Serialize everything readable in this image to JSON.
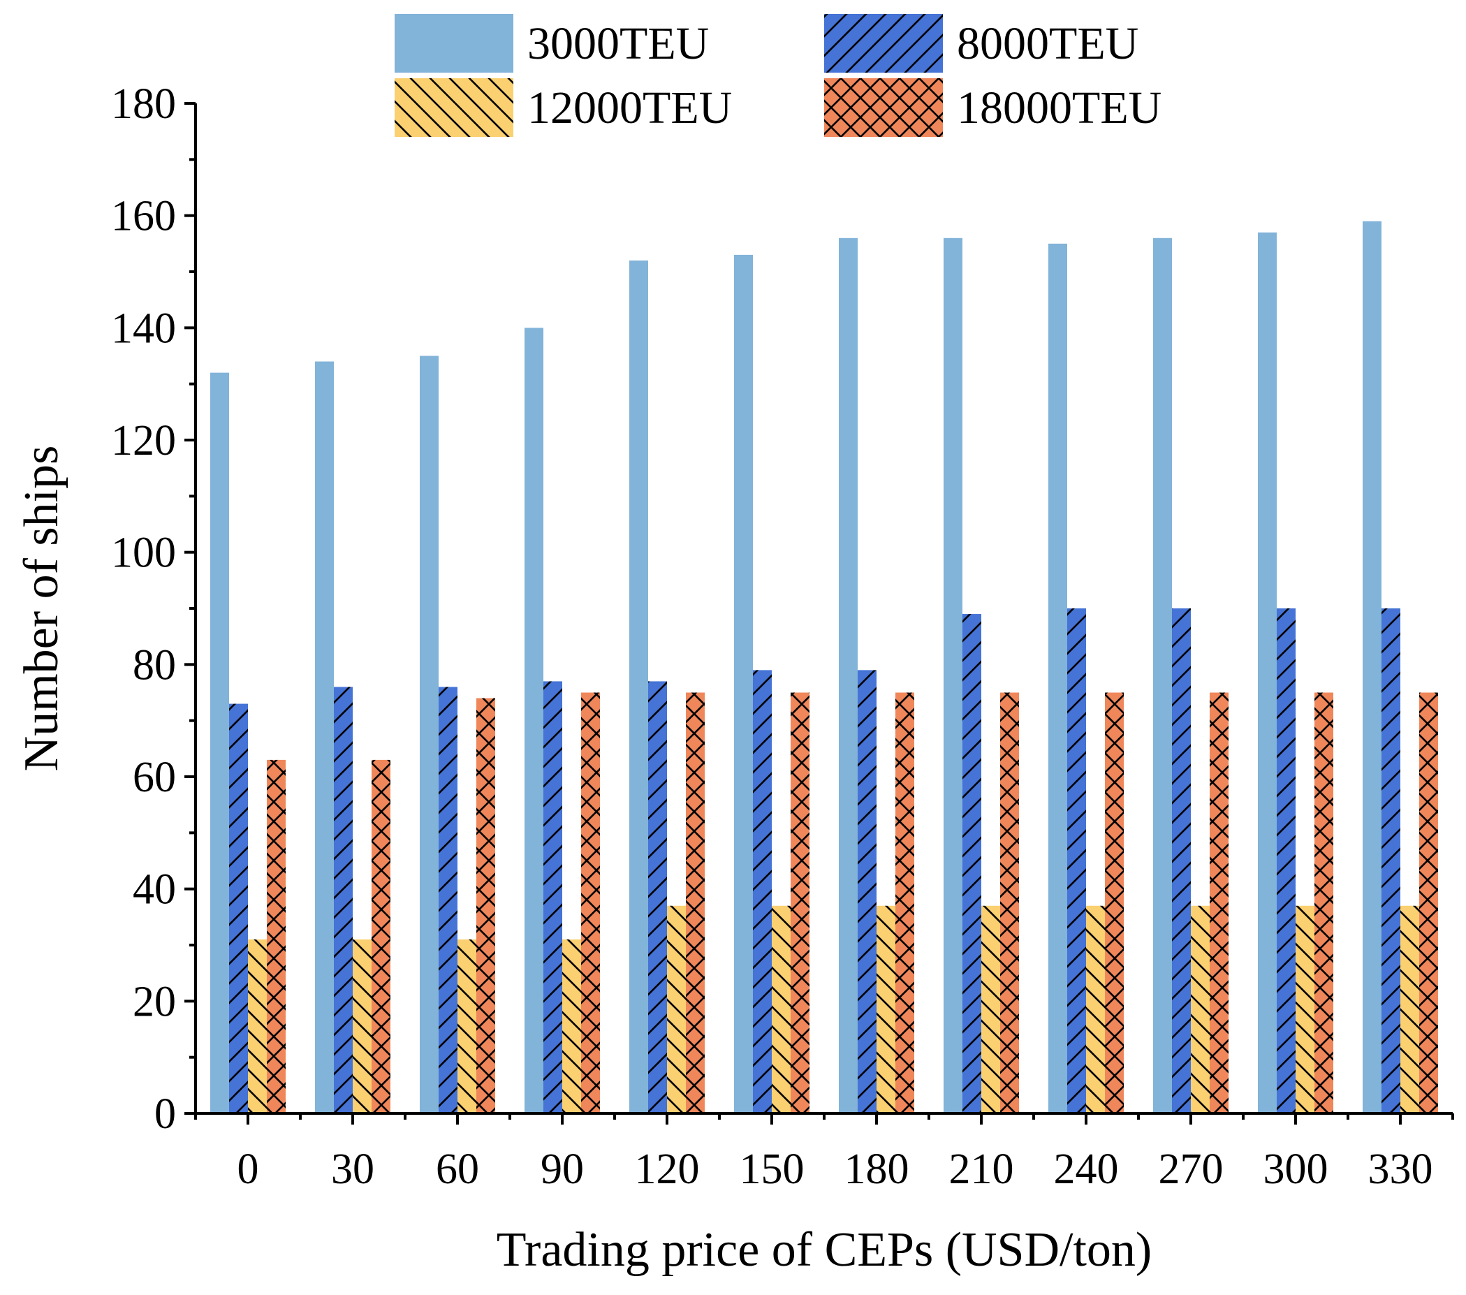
{
  "chart_data": {
    "type": "bar",
    "title": "",
    "xlabel": "Trading price of CEPs (USD/ton)",
    "ylabel": "Number of ships",
    "categories": [
      "0",
      "30",
      "60",
      "90",
      "120",
      "150",
      "180",
      "210",
      "240",
      "270",
      "300",
      "330"
    ],
    "ylim": [
      0,
      180
    ],
    "yticks": [
      0,
      20,
      40,
      60,
      80,
      100,
      120,
      140,
      160,
      180
    ],
    "grid": false,
    "legend_position": "top",
    "series": [
      {
        "name": "3000TEU",
        "color": "#82B3D9",
        "pattern": "none",
        "values": [
          132,
          134,
          135,
          140,
          152,
          153,
          156,
          156,
          155,
          156,
          157,
          159
        ]
      },
      {
        "name": "8000TEU",
        "color": "#4573D6",
        "pattern": "forward-diagonal",
        "values": [
          73,
          76,
          76,
          77,
          77,
          79,
          79,
          89,
          90,
          90,
          90,
          90
        ]
      },
      {
        "name": "12000TEU",
        "color": "#FBD070",
        "pattern": "backward-diagonal",
        "values": [
          31,
          31,
          31,
          31,
          37,
          37,
          37,
          37,
          37,
          37,
          37,
          37
        ]
      },
      {
        "name": "18000TEU",
        "color": "#F0875A",
        "pattern": "crosshatch",
        "values": [
          63,
          63,
          74,
          75,
          75,
          75,
          75,
          75,
          75,
          75,
          75,
          75
        ]
      }
    ]
  }
}
